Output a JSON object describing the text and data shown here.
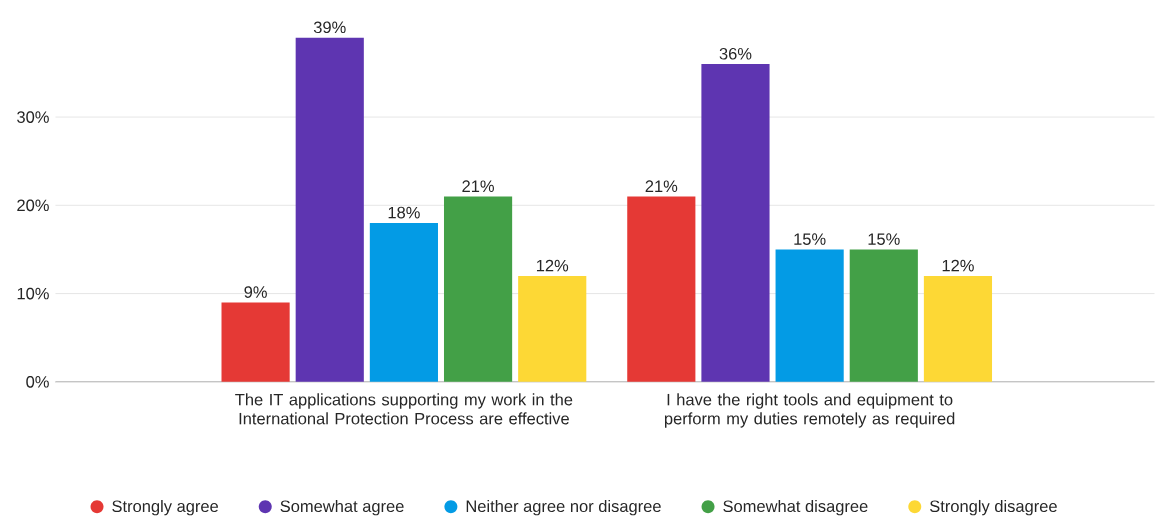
{
  "chart_data": {
    "type": "bar",
    "categories": [
      "The IT applications supporting my work in the International Protection Process are effective",
      "I have the right tools and equipment to perform my duties remotely as required"
    ],
    "series": [
      {
        "name": "Strongly agree",
        "color": "#e53935",
        "values": [
          9,
          21
        ],
        "value_labels": [
          "9%",
          "21%"
        ]
      },
      {
        "name": "Somewhat agree",
        "color": "#5e35b1",
        "values": [
          39,
          36
        ],
        "value_labels": [
          "39%",
          "36%"
        ]
      },
      {
        "name": "Neither agree nor disagree",
        "color": "#039be5",
        "values": [
          18,
          15
        ],
        "value_labels": [
          "18%",
          "15%"
        ]
      },
      {
        "name": "Somewhat disagree",
        "color": "#43a047",
        "values": [
          21,
          15
        ],
        "value_labels": [
          "21%",
          "15%"
        ]
      },
      {
        "name": "Strongly disagree",
        "color": "#fdd835",
        "values": [
          12,
          12
        ],
        "value_labels": [
          "12%",
          "12%"
        ]
      }
    ],
    "ylim": [
      0,
      41
    ],
    "yticks": [
      {
        "value": 0,
        "label": "0%"
      },
      {
        "value": 10,
        "label": "10%"
      },
      {
        "value": 20,
        "label": "20%"
      },
      {
        "value": 30,
        "label": "30%"
      }
    ],
    "grid": "y",
    "legend": "bottom"
  }
}
